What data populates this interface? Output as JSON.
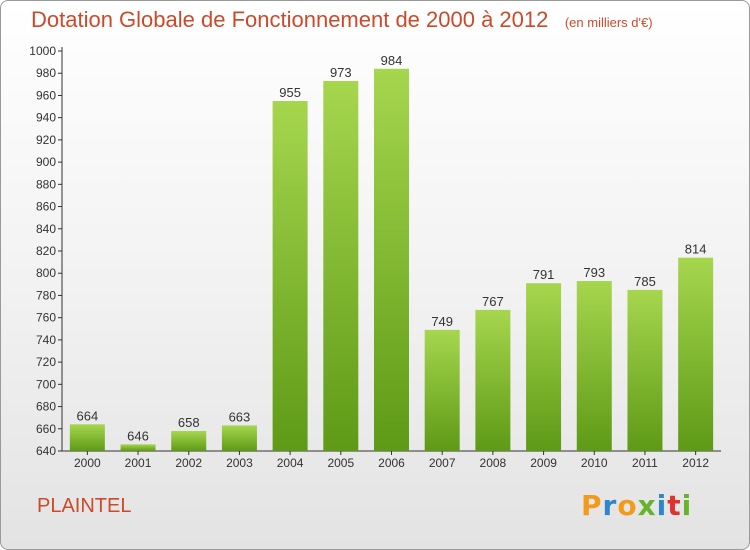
{
  "title": "Dotation Globale de Fonctionnement de 2000 à 2012",
  "unit": "(en milliers d'€)",
  "commune": "PLAINTEL",
  "brand": {
    "text": "Proxiti",
    "colors": [
      "#f29a1c",
      "#2f86c8",
      "#f29a1c",
      "#67b32e",
      "#2f86c8",
      "#e0312a",
      "#67b32e"
    ]
  },
  "colors": {
    "title": "#cc4a2a",
    "bar_light": "#a6d64e",
    "bar_dark": "#5e9a16",
    "axis": "#333333"
  },
  "chart_data": {
    "type": "bar",
    "categories": [
      "2000",
      "2001",
      "2002",
      "2003",
      "2004",
      "2005",
      "2006",
      "2007",
      "2008",
      "2009",
      "2010",
      "2011",
      "2012"
    ],
    "values": [
      664,
      646,
      658,
      663,
      955,
      973,
      984,
      749,
      767,
      791,
      793,
      785,
      814
    ],
    "ylim": [
      640,
      1000
    ],
    "yticks": [
      640,
      660,
      680,
      700,
      720,
      740,
      760,
      780,
      800,
      820,
      840,
      860,
      880,
      900,
      920,
      940,
      960,
      980,
      1000
    ],
    "grid": false,
    "legend": "none"
  }
}
